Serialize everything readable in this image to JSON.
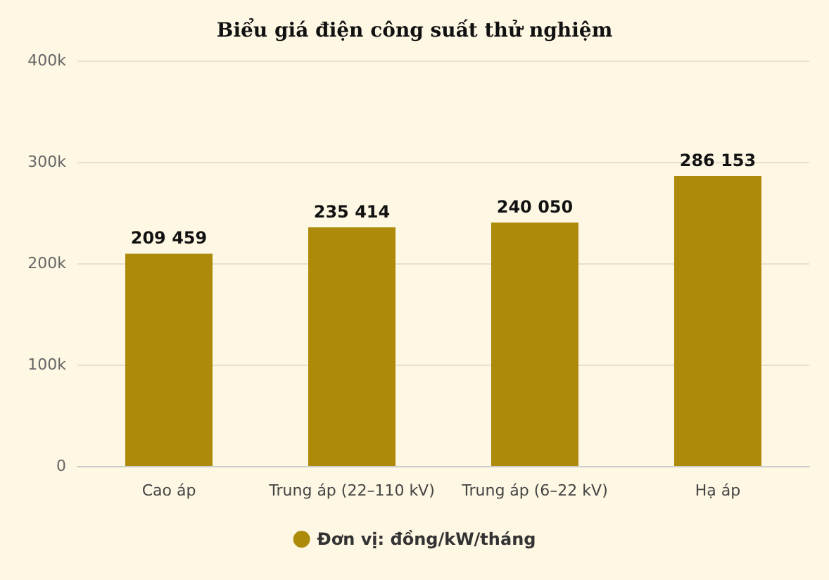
{
  "chart_data": {
    "type": "bar",
    "title": "Biểu giá điện công suất thử nghiệm",
    "categories": [
      "Cao áp",
      "Trung áp (22–110 kV)",
      "Trung áp (6–22 kV)",
      "Hạ áp"
    ],
    "series": [
      {
        "name": "Đơn vị: đồng/kW/tháng",
        "color": "#ad8a0a",
        "values": [
          209459,
          235414,
          240050,
          286153
        ],
        "value_labels": [
          "209 459",
          "235 414",
          "240 050",
          "286 153"
        ]
      }
    ],
    "ylim": [
      0,
      400000
    ],
    "yticks": [
      0,
      {
        "value": 100000,
        "label": "100k"
      },
      {
        "value": 200000,
        "label": "200k"
      },
      {
        "value": 300000,
        "label": "300k"
      },
      {
        "value": 400000,
        "label": "400k"
      }
    ],
    "grid": "y",
    "legend": "bottom"
  }
}
